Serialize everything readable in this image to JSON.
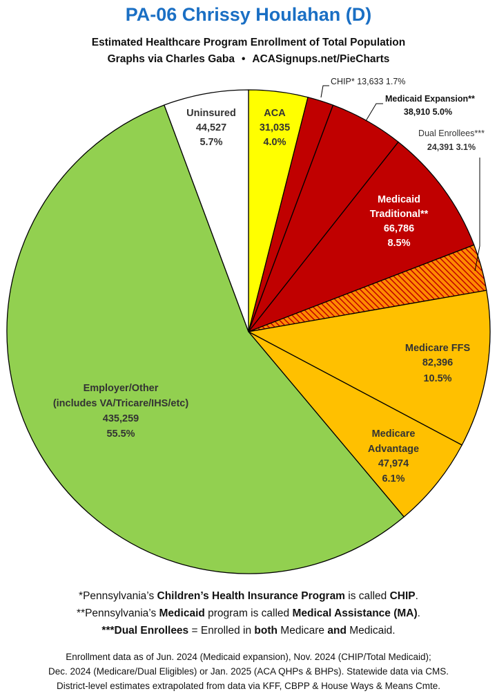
{
  "header": {
    "title": "PA-06 Chrissy Houlahan (D)",
    "subtitle_line1": "Estimated Healthcare Program Enrollment of Total Population",
    "subtitle_credit": "Graphs via Charles Gaba",
    "subtitle_bullet": "•",
    "subtitle_site": "ACASignups.net/PieCharts"
  },
  "chart_data": {
    "type": "pie",
    "title": "PA-06 Chrissy Houlahan (D)",
    "subtitle": "Estimated Healthcare Program Enrollment of Total Population",
    "slices": [
      {
        "label": "ACA",
        "value": 31035,
        "value_text": "31,035",
        "percent": "4.0%",
        "color": "#ffff00"
      },
      {
        "label": "CHIP*",
        "value": 13633,
        "value_text": "13,633",
        "percent": "1.7%",
        "color": "#c00000"
      },
      {
        "label": "Medicaid Expansion**",
        "value": 38910,
        "value_text": "38,910",
        "percent": "5.0%",
        "color": "#c00000"
      },
      {
        "label": "Medicaid Traditional**",
        "value": 66786,
        "value_text": "66,786",
        "percent": "8.5%",
        "color": "#c00000"
      },
      {
        "label": "Dual Enrollees***",
        "value": 24391,
        "value_text": "24,391",
        "percent": "3.1%",
        "color": "#c00000",
        "pattern": "hatched"
      },
      {
        "label": "Medicare FFS",
        "value": 82396,
        "value_text": "82,396",
        "percent": "10.5%",
        "color": "#ffc000"
      },
      {
        "label": "Medicare Advantage",
        "value": 47974,
        "value_text": "47,974",
        "percent": "6.1%",
        "color": "#ffc000"
      },
      {
        "label": "Employer/Other (includes VA/Tricare/IHS/etc)",
        "value": 435259,
        "value_text": "435,259",
        "percent": "55.5%",
        "color": "#92d050"
      },
      {
        "label": "Uninsured",
        "value": 44527,
        "value_text": "44,527",
        "percent": "5.7%",
        "color": "#ffffff"
      }
    ]
  },
  "labels": {
    "aca": {
      "name": "ACA",
      "value": "31,035",
      "pct": "4.0%"
    },
    "chip": {
      "text": "CHIP* 13,633 1.7%"
    },
    "medicaid_expansion": {
      "name": "Medicaid Expansion**",
      "line2": "38,910 5.0%"
    },
    "dual": {
      "name": "Dual Enrollees***",
      "line2": "24,391 3.1%"
    },
    "medicaid_traditional": {
      "line1": "Medicaid",
      "line2": "Traditional**",
      "value": "66,786",
      "pct": "8.5%"
    },
    "medicare_ffs": {
      "name": "Medicare FFS",
      "value": "82,396",
      "pct": "10.5%"
    },
    "medicare_adv": {
      "line1": "Medicare",
      "line2": "Advantage",
      "value": "47,974",
      "pct": "6.1%"
    },
    "employer": {
      "line1": "Employer/Other",
      "line2": "(includes VA/Tricare/IHS/etc)",
      "value": "435,259",
      "pct": "55.5%"
    },
    "uninsured": {
      "name": "Uninsured",
      "value": "44,527",
      "pct": "5.7%"
    }
  },
  "footnotes": {
    "f1_a": "*Pennsylvania’s ",
    "f1_b": "Children’s Health Insurance Program",
    "f1_c": " is called ",
    "f1_d": "CHIP",
    "f1_e": ".",
    "f2_a": "**Pennsylvania’s ",
    "f2_b": "Medicaid",
    "f2_c": " program is called ",
    "f2_d": "Medical Assistance (MA)",
    "f2_e": ".",
    "f3_a": "***Dual Enrollees",
    "f3_b": " = Enrolled in ",
    "f3_c": "both",
    "f3_d": " Medicare ",
    "f3_e": "and",
    "f3_f": " Medicaid."
  },
  "source": {
    "line1": "Enrollment data as of Jun. 2024 (Medicaid expansion), Nov. 2024 (CHIP/Total Medicaid);",
    "line2": "Dec. 2024 (Medicare/Dual Eligibles) or Jan. 2025 (ACA QHPs & BHPs). Statewide data via CMS.",
    "line3": "District-level estimates extrapolated from data via KFF, CBPP & House Ways & Means Cmte."
  }
}
